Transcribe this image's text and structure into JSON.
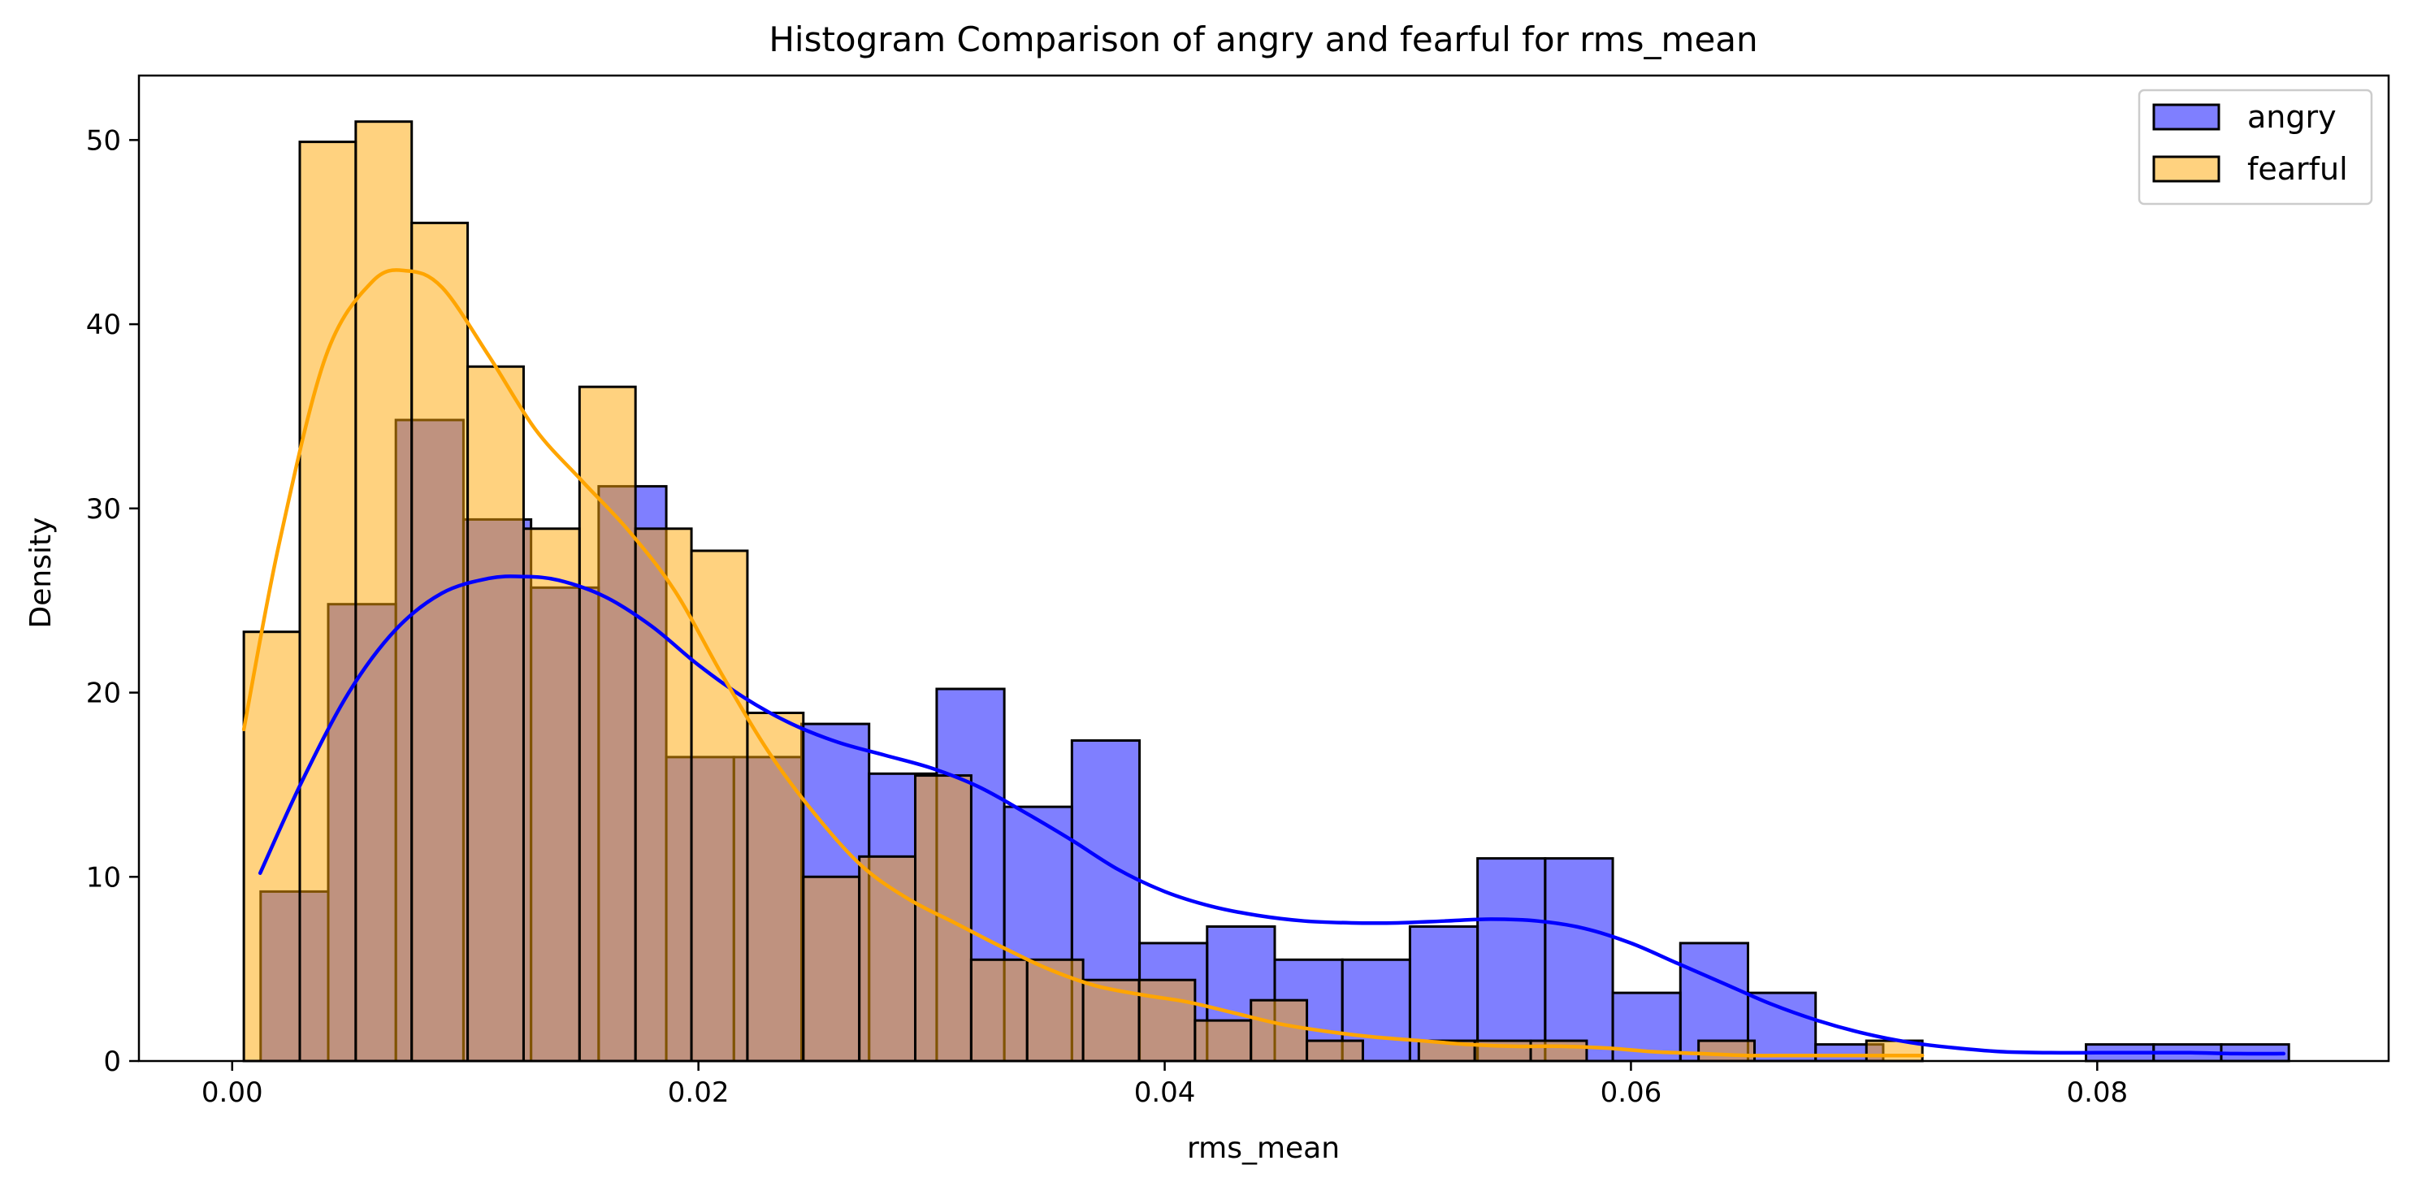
{
  "chart_data": {
    "type": "histogram",
    "title": "Histogram Comparison of angry and fearful for rms_mean",
    "xlabel": "rms_mean",
    "ylabel": "Density",
    "xlim": [
      -0.004,
      0.0925
    ],
    "ylim": [
      0,
      53.5
    ],
    "xticks": [
      0.0,
      0.02,
      0.04,
      0.06,
      0.08
    ],
    "xtick_labels": [
      "0.00",
      "0.02",
      "0.04",
      "0.06",
      "0.08"
    ],
    "yticks": [
      0,
      10,
      20,
      30,
      40,
      50
    ],
    "ytick_labels": [
      "0",
      "10",
      "20",
      "30",
      "40",
      "50"
    ],
    "grid": false,
    "legend_position": "top-right",
    "series": [
      {
        "name": "angry",
        "fill_color": "#0000ff",
        "line_color": "#0000ff",
        "bin_edges": [
          0.00122,
          0.00412,
          0.00702,
          0.00992,
          0.01282,
          0.01572,
          0.01862,
          0.02152,
          0.02442,
          0.02732,
          0.03022,
          0.03312,
          0.03602,
          0.03892,
          0.04182,
          0.04472,
          0.04762,
          0.05052,
          0.05342,
          0.05632,
          0.05922,
          0.06212,
          0.06502,
          0.06792,
          0.07082,
          0.07372,
          0.07662,
          0.07952,
          0.08242,
          0.08532,
          0.08822
        ],
        "densities": [
          9.2,
          24.8,
          34.8,
          29.4,
          25.7,
          31.2,
          16.5,
          16.5,
          18.3,
          15.6,
          20.2,
          13.8,
          17.4,
          6.4,
          7.3,
          5.5,
          5.5,
          7.3,
          11.0,
          11.0,
          3.7,
          6.4,
          3.7,
          0.9,
          0.0,
          0.0,
          0.0,
          0.9,
          0.9,
          0.9
        ],
        "kde": {
          "x": [
            0.0012,
            0.003,
            0.005,
            0.007,
            0.009,
            0.011,
            0.0125,
            0.014,
            0.016,
            0.018,
            0.02,
            0.022,
            0.024,
            0.026,
            0.028,
            0.03,
            0.032,
            0.034,
            0.036,
            0.038,
            0.04,
            0.042,
            0.044,
            0.046,
            0.048,
            0.05,
            0.052,
            0.054,
            0.056,
            0.058,
            0.06,
            0.062,
            0.064,
            0.066,
            0.068,
            0.07,
            0.072,
            0.074,
            0.076,
            0.078,
            0.08,
            0.082,
            0.084,
            0.086,
            0.088
          ],
          "y": [
            10.2,
            15.2,
            20.0,
            23.4,
            25.4,
            26.2,
            26.3,
            26.1,
            25.2,
            23.6,
            21.5,
            19.7,
            18.3,
            17.3,
            16.6,
            15.9,
            14.9,
            13.5,
            12.0,
            10.4,
            9.2,
            8.4,
            7.9,
            7.6,
            7.5,
            7.5,
            7.6,
            7.7,
            7.6,
            7.2,
            6.4,
            5.3,
            4.2,
            3.1,
            2.2,
            1.5,
            1.0,
            0.7,
            0.5,
            0.45,
            0.45,
            0.45,
            0.45,
            0.4,
            0.4
          ]
        }
      },
      {
        "name": "fearful",
        "fill_color": "#ffa500",
        "line_color": "#ffa500",
        "bin_edges": [
          0.0005,
          0.0029,
          0.0053,
          0.0077,
          0.0101,
          0.0125,
          0.0149,
          0.0173,
          0.0197,
          0.0221,
          0.0245,
          0.0269,
          0.0293,
          0.0317,
          0.0341,
          0.0365,
          0.0389,
          0.0413,
          0.0437,
          0.0461,
          0.0485,
          0.0509,
          0.0533,
          0.0557,
          0.0581,
          0.0605,
          0.0629,
          0.0653,
          0.0677,
          0.0701,
          0.0725
        ],
        "densities": [
          23.3,
          49.9,
          51.0,
          45.5,
          37.7,
          28.9,
          36.6,
          28.9,
          27.7,
          18.9,
          10.0,
          11.1,
          15.5,
          5.5,
          5.5,
          4.4,
          4.4,
          2.2,
          3.3,
          1.1,
          0.0,
          1.1,
          1.1,
          1.1,
          0.0,
          0.0,
          1.1,
          0.0,
          0.0,
          1.1
        ],
        "kde": {
          "x": [
            0.0005,
            0.002,
            0.004,
            0.006,
            0.0075,
            0.009,
            0.011,
            0.013,
            0.015,
            0.017,
            0.019,
            0.021,
            0.023,
            0.025,
            0.027,
            0.029,
            0.031,
            0.033,
            0.035,
            0.037,
            0.039,
            0.041,
            0.043,
            0.045,
            0.047,
            0.049,
            0.051,
            0.053,
            0.055,
            0.057,
            0.059,
            0.061,
            0.063,
            0.065,
            0.067,
            0.069,
            0.0725
          ],
          "y": [
            18.0,
            28.0,
            38.2,
            42.3,
            42.9,
            42.0,
            38.3,
            34.3,
            31.5,
            28.8,
            25.5,
            21.0,
            16.8,
            13.4,
            10.6,
            8.8,
            7.5,
            6.2,
            5.0,
            4.1,
            3.6,
            3.2,
            2.6,
            2.0,
            1.6,
            1.3,
            1.1,
            0.9,
            0.8,
            0.8,
            0.7,
            0.5,
            0.4,
            0.3,
            0.3,
            0.3,
            0.3
          ]
        }
      }
    ]
  }
}
